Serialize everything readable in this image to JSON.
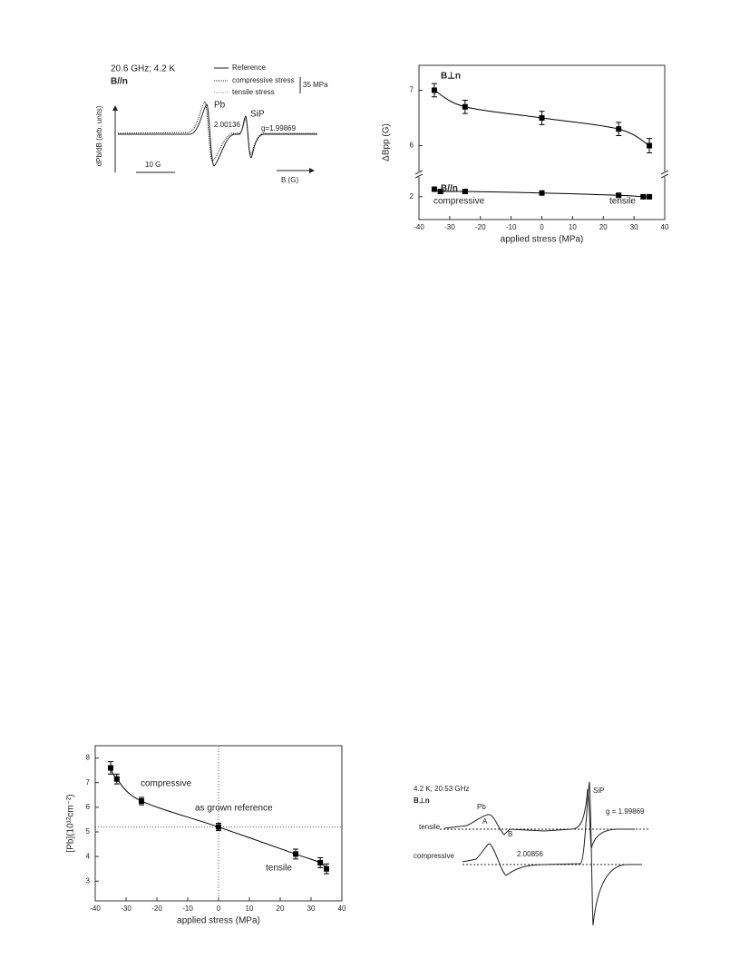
{
  "chart_data": [
    {
      "type": "scatter",
      "xlabel": "applied stress (MPa)",
      "ylabel": "ΔBpp (G)",
      "xlim": [
        -40,
        40
      ],
      "xticks": [
        -40,
        -30,
        -20,
        -10,
        0,
        10,
        20,
        30,
        40
      ],
      "ylim": [
        5.55,
        7.45
      ],
      "yticks": [
        6,
        7
      ],
      "y2lim": [
        1.7,
        2.25
      ],
      "y2ticks": [
        2
      ],
      "series": [
        {
          "name": "B⊥n",
          "color": "#000000",
          "fit": true,
          "x": [
            -35,
            -25,
            0,
            25,
            35
          ],
          "values": [
            7.0,
            6.7,
            6.5,
            6.3,
            6.0
          ],
          "errors": [
            0.12,
            0.12,
            0.12,
            0.12,
            0.13
          ]
        },
        {
          "name": "B//n",
          "color": "#000000",
          "fit": true,
          "axis": "y2",
          "x": [
            -35,
            -33,
            -25,
            0,
            25,
            33,
            35
          ],
          "values": [
            2.1,
            2.07,
            2.07,
            2.05,
            2.02,
            2.0,
            2.0
          ],
          "errors": [
            0.02,
            0.02,
            0.02,
            0.02,
            0.02,
            0.02,
            0.02
          ]
        }
      ],
      "annotations": [
        "compressive",
        "tensile"
      ]
    },
    {
      "type": "scatter",
      "xlabel": "applied stress (MPa)",
      "ylabel": "[Pb](10¹²cm⁻²)",
      "xlim": [
        -40,
        40
      ],
      "xticks": [
        -40,
        -30,
        -20,
        -10,
        0,
        10,
        20,
        30,
        40
      ],
      "ylim": [
        2.2,
        8.5
      ],
      "yticks": [
        3,
        4,
        5,
        6,
        7,
        8
      ],
      "reference_lines": {
        "x": 0,
        "y": 5.2
      },
      "series": [
        {
          "color": "#000000",
          "fit": true,
          "x": [
            -35,
            -33,
            -25,
            0,
            25,
            33,
            35
          ],
          "values": [
            7.6,
            7.15,
            6.25,
            5.2,
            4.1,
            3.75,
            3.5
          ],
          "errors": [
            0.25,
            0.2,
            0.15,
            0.15,
            0.2,
            0.2,
            0.2
          ]
        }
      ],
      "annotations": [
        "compressive",
        "as grown reference",
        "tensile"
      ]
    }
  ],
  "spectra": [
    {
      "conditions": "20.6 GHz; 4.2 K",
      "orientation": "B//n",
      "legend": [
        "Reference",
        "compressive stress",
        "tensile stress"
      ],
      "stress": "35 MPa",
      "labels": [
        "Pb",
        "2.00136",
        "SiP",
        "g=1.99869"
      ],
      "ylabel": "dPb/dB (arb. units)",
      "scale": "10 G",
      "xlabel": "B (G)"
    },
    {
      "conditions": "4.2 K; 20.53 GHz",
      "orientation": "B⊥n",
      "labels": [
        "Pb",
        "A",
        "B",
        "SiP",
        "g = 1.99869",
        "tensile",
        "compressive",
        "2.00856"
      ]
    }
  ]
}
